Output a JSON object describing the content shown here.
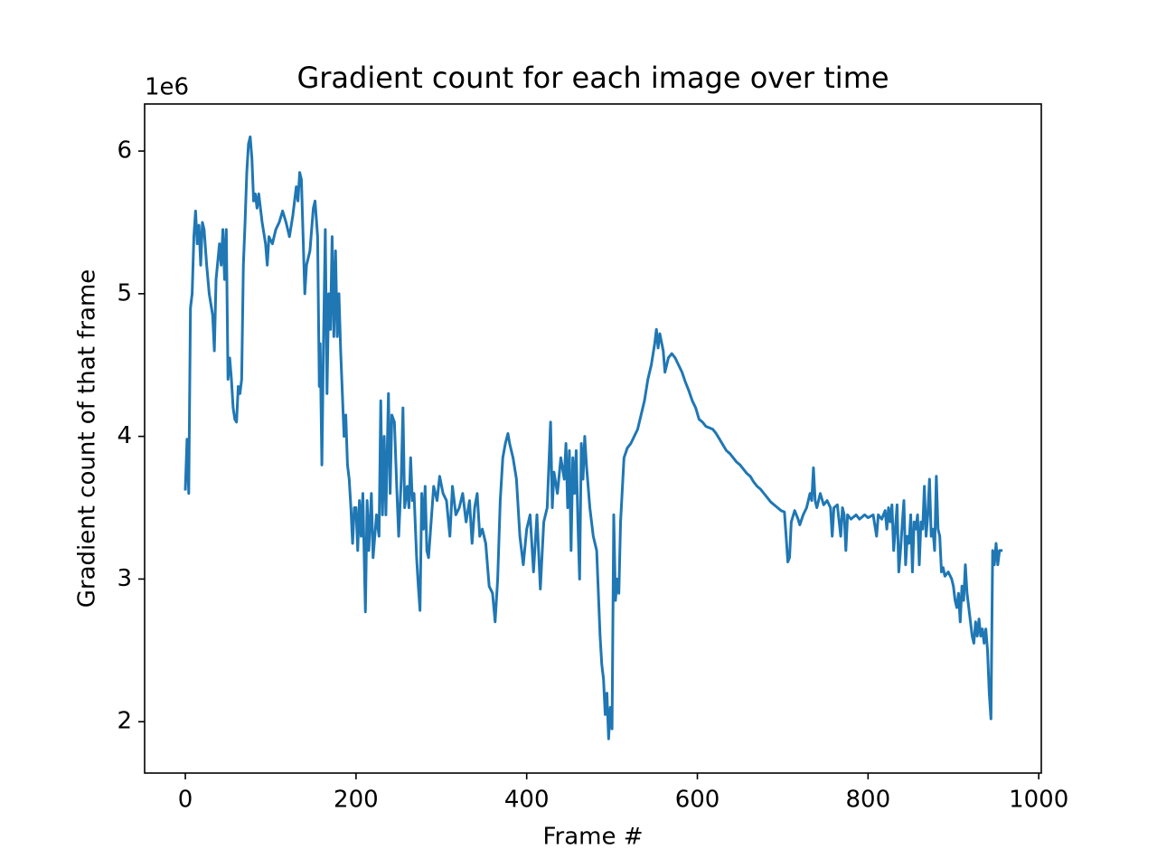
{
  "chart_data": {
    "type": "line",
    "title": "Gradient count for each image over time",
    "x_label": "Frame #",
    "y_label": "Gradient count of that frame",
    "offset_label": "1e6",
    "color": "#1f77b4",
    "xlim": [
      -47.7,
      1003
    ],
    "xticks": [
      0,
      200,
      400,
      600,
      800,
      1000
    ],
    "ylim": [
      1.64,
      6.33
    ],
    "yticks": [
      2,
      3,
      4,
      5,
      6
    ],
    "x": [
      0,
      2,
      4,
      6,
      8,
      10,
      12,
      14,
      16,
      18,
      20,
      22,
      25,
      28,
      32,
      34,
      36,
      40,
      42,
      44,
      46,
      48,
      50,
      52,
      54,
      56,
      58,
      60,
      62,
      64,
      66,
      68,
      70,
      72,
      74,
      76,
      78,
      80,
      82,
      84,
      86,
      90,
      94,
      96,
      98,
      102,
      106,
      110,
      114,
      118,
      122,
      126,
      130,
      132,
      134,
      136,
      138,
      140,
      142,
      146,
      150,
      152,
      155,
      157,
      158,
      160,
      162,
      164,
      166,
      168,
      170,
      172,
      174,
      176,
      178,
      180,
      182,
      184,
      186,
      188,
      190,
      192,
      194,
      196,
      198,
      200,
      202,
      204,
      206,
      208,
      211,
      213,
      215,
      218,
      220,
      224,
      227,
      229,
      231,
      233,
      235,
      238,
      240,
      242,
      245,
      248,
      250,
      253,
      255,
      257,
      260,
      262,
      264,
      266,
      268,
      271,
      273,
      275,
      277,
      279,
      281,
      283,
      285,
      288,
      291,
      295,
      298,
      302,
      306,
      310,
      313,
      317,
      321,
      325,
      329,
      333,
      336,
      339,
      342,
      345,
      348,
      352,
      356,
      360,
      363,
      366,
      369,
      372,
      375,
      378,
      380,
      384,
      388,
      392,
      396,
      400,
      404,
      408,
      412,
      416,
      420,
      424,
      428,
      430,
      432,
      436,
      440,
      444,
      446,
      448,
      450,
      452,
      454,
      456,
      458,
      460,
      462,
      464,
      466,
      468,
      470,
      474,
      478,
      482,
      486,
      488,
      490,
      492,
      494,
      496,
      498,
      500,
      502,
      504,
      506,
      508,
      510,
      514,
      518,
      522,
      526,
      530,
      534,
      538,
      542,
      546,
      550,
      552,
      554,
      556,
      560,
      562,
      566,
      570,
      574,
      578,
      582,
      586,
      590,
      594,
      598,
      602,
      606,
      610,
      614,
      618,
      622,
      626,
      630,
      634,
      638,
      642,
      646,
      650,
      654,
      658,
      662,
      666,
      670,
      674,
      678,
      682,
      686,
      690,
      694,
      698,
      702,
      704,
      706,
      708,
      710,
      714,
      718,
      720,
      724,
      728,
      732,
      734,
      736,
      738,
      740,
      744,
      748,
      752,
      756,
      758,
      760,
      764,
      768,
      770,
      772,
      774,
      776,
      780,
      786,
      790,
      796,
      800,
      806,
      810,
      812,
      816,
      820,
      822,
      824,
      826,
      828,
      830,
      832,
      834,
      836,
      838,
      840,
      842,
      844,
      846,
      848,
      850,
      852,
      854,
      856,
      858,
      860,
      862,
      864,
      866,
      868,
      870,
      872,
      874,
      876,
      878,
      880,
      882,
      884,
      886,
      888,
      890,
      894,
      898,
      900,
      902,
      904,
      906,
      908,
      910,
      912,
      914,
      916,
      918,
      920,
      922,
      924,
      926,
      928,
      930,
      932,
      934,
      936,
      938,
      940,
      942,
      944,
      946,
      948,
      950,
      952,
      954,
      956
    ],
    "values": [
      3.63,
      3.98,
      3.6,
      4.9,
      5.0,
      5.4,
      5.58,
      5.35,
      5.48,
      5.2,
      5.5,
      5.45,
      5.2,
      5.0,
      4.85,
      4.6,
      5.1,
      5.35,
      5.2,
      5.45,
      5.1,
      5.45,
      4.4,
      4.55,
      4.4,
      4.2,
      4.12,
      4.1,
      4.35,
      4.3,
      4.4,
      5.2,
      5.5,
      5.85,
      6.05,
      6.1,
      5.95,
      5.65,
      5.7,
      5.6,
      5.7,
      5.5,
      5.35,
      5.2,
      5.4,
      5.35,
      5.45,
      5.5,
      5.58,
      5.5,
      5.4,
      5.55,
      5.75,
      5.65,
      5.85,
      5.8,
      5.4,
      5.0,
      5.2,
      5.3,
      5.6,
      5.65,
      5.4,
      4.35,
      4.65,
      3.8,
      4.7,
      5.45,
      4.3,
      5.0,
      4.75,
      5.4,
      4.7,
      5.3,
      4.7,
      5.0,
      4.6,
      4.3,
      4.0,
      4.15,
      3.8,
      3.7,
      3.5,
      3.25,
      3.5,
      3.5,
      3.2,
      3.55,
      3.3,
      3.6,
      2.77,
      3.55,
      3.2,
      3.6,
      3.15,
      3.45,
      3.3,
      4.25,
      3.45,
      4.0,
      3.45,
      4.3,
      3.6,
      4.15,
      4.1,
      3.6,
      3.3,
      3.7,
      4.2,
      3.5,
      3.65,
      3.5,
      3.85,
      3.55,
      3.6,
      3.15,
      2.95,
      2.78,
      3.6,
      3.35,
      3.65,
      3.2,
      3.15,
      3.4,
      3.65,
      3.55,
      3.72,
      3.6,
      3.55,
      3.3,
      3.65,
      3.45,
      3.5,
      3.6,
      3.4,
      3.55,
      3.25,
      3.5,
      3.6,
      3.3,
      3.35,
      3.25,
      2.95,
      2.9,
      2.7,
      3.0,
      3.55,
      3.85,
      3.95,
      4.02,
      3.95,
      3.85,
      3.7,
      3.3,
      3.1,
      3.35,
      3.45,
      3.05,
      3.45,
      2.93,
      3.4,
      3.5,
      4.1,
      3.5,
      3.75,
      3.6,
      3.85,
      3.7,
      3.95,
      3.5,
      3.9,
      3.2,
      3.85,
      3.6,
      3.9,
      3.4,
      3.0,
      3.95,
      3.7,
      4.0,
      3.8,
      3.5,
      3.3,
      3.2,
      2.6,
      2.4,
      2.3,
      2.05,
      2.2,
      1.88,
      2.1,
      1.95,
      3.45,
      2.85,
      3.0,
      2.9,
      3.4,
      3.85,
      3.92,
      3.95,
      4.0,
      4.05,
      4.15,
      4.25,
      4.4,
      4.5,
      4.65,
      4.75,
      4.62,
      4.72,
      4.6,
      4.45,
      4.55,
      4.58,
      4.55,
      4.5,
      4.45,
      4.38,
      4.32,
      4.25,
      4.2,
      4.12,
      4.1,
      4.07,
      4.06,
      4.05,
      4.02,
      3.98,
      3.94,
      3.9,
      3.88,
      3.85,
      3.82,
      3.8,
      3.77,
      3.74,
      3.72,
      3.68,
      3.65,
      3.63,
      3.6,
      3.57,
      3.54,
      3.52,
      3.5,
      3.48,
      3.47,
      3.3,
      3.12,
      3.15,
      3.4,
      3.48,
      3.42,
      3.38,
      3.45,
      3.5,
      3.6,
      3.55,
      3.78,
      3.55,
      3.5,
      3.6,
      3.52,
      3.55,
      3.5,
      3.3,
      3.5,
      3.52,
      3.3,
      3.5,
      3.45,
      3.2,
      3.45,
      3.42,
      3.45,
      3.42,
      3.45,
      3.43,
      3.45,
      3.3,
      3.45,
      3.42,
      3.48,
      3.35,
      3.5,
      3.4,
      3.52,
      3.2,
      3.35,
      3.52,
      3.05,
      3.2,
      3.38,
      3.55,
      3.1,
      3.3,
      3.25,
      3.45,
      3.05,
      3.4,
      3.35,
      3.45,
      3.1,
      3.4,
      3.35,
      3.65,
      3.3,
      3.45,
      3.7,
      3.3,
      3.35,
      3.2,
      3.72,
      3.35,
      3.3,
      3.05,
      3.08,
      3.02,
      3.05,
      3.0,
      2.95,
      2.85,
      2.8,
      2.9,
      2.7,
      2.95,
      2.85,
      3.1,
      2.9,
      2.8,
      2.7,
      2.6,
      2.55,
      2.7,
      2.6,
      2.72,
      2.6,
      2.65,
      2.55,
      2.65,
      2.5,
      2.2,
      2.02,
      3.2,
      3.1,
      3.25,
      3.1,
      3.2,
      3.2
    ]
  }
}
